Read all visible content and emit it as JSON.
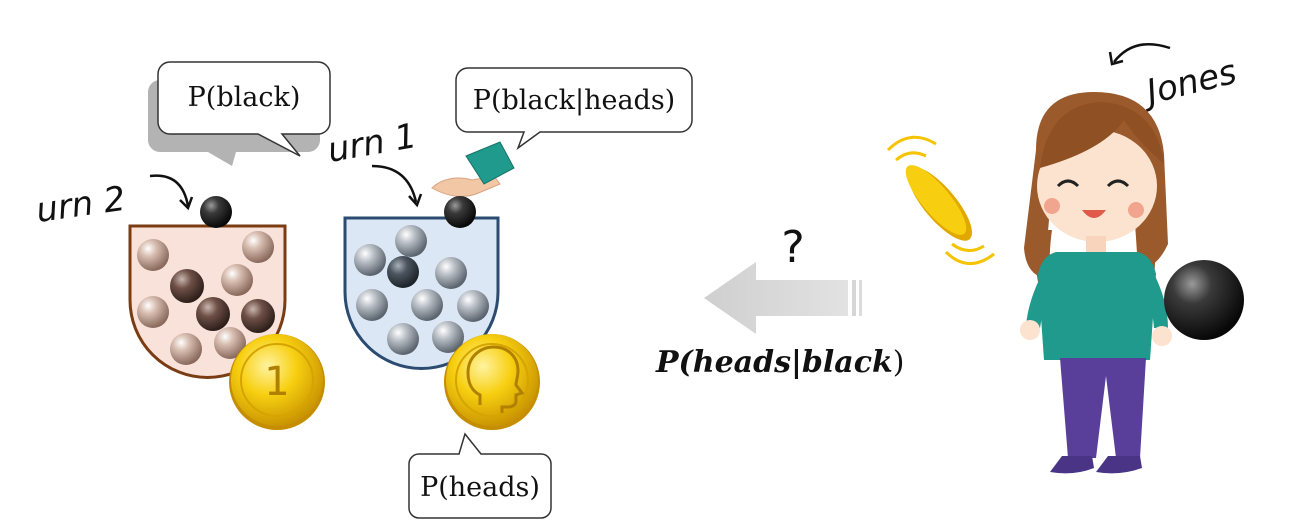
{
  "bubbles": {
    "p_black": "P(black)",
    "p_black_given_heads": "P(black|heads)",
    "p_heads": "P(heads)"
  },
  "labels": {
    "urn2": "urn 2",
    "urn1": "urn 1",
    "jones": "Jones",
    "question": "?"
  },
  "formula": {
    "open": "P(",
    "heads": "heads",
    "bar": "|",
    "black": "black",
    "close": ")"
  },
  "coin1": {
    "label": "1"
  },
  "colors": {
    "urn2_fill": "#f9e2da",
    "urn2_stroke": "#7a3c12",
    "urn1_fill": "#dbe7f5",
    "urn1_stroke": "#2b4b70",
    "coin_gold": "#f5c400",
    "arrow_gray": "#d6d6d6",
    "shirt_teal": "#1f9a8c",
    "pants_purple": "#5a3f9a",
    "hair_brown": "#9a5a2c"
  }
}
